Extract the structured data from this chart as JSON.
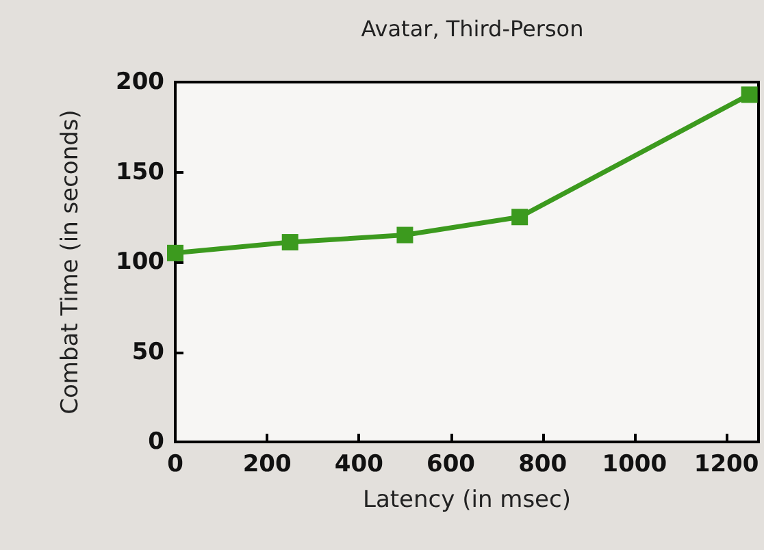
{
  "chart_data": {
    "type": "line",
    "title": "Avatar, Third-Person",
    "xlabel": "Latency (in msec)",
    "ylabel": "Combat Time (in seconds)",
    "x": [
      0,
      250,
      500,
      750,
      1250
    ],
    "series": [
      {
        "color": "#3c9a1e",
        "values": [
          105,
          111,
          115,
          125,
          193
        ]
      }
    ],
    "xlim": [
      0,
      1270
    ],
    "xticks": [
      0,
      200,
      400,
      600,
      800,
      1000,
      1200
    ],
    "ylim": [
      0,
      200
    ],
    "yticks": [
      0,
      50,
      100,
      150,
      200
    ],
    "marker": "square",
    "line_style": "solid",
    "grid": false
  }
}
